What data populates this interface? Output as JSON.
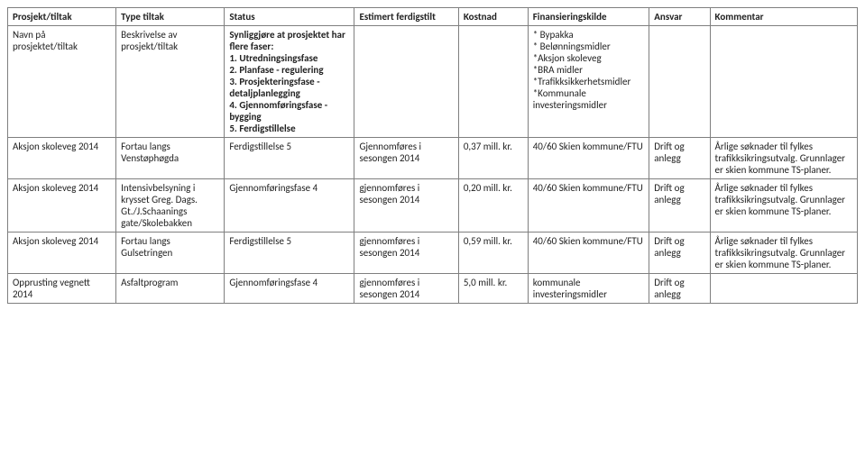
{
  "columns": [
    "Prosjekt/tiltak",
    "Type tiltak",
    "Status",
    "Estimert ferdigstilt",
    "Kostnad",
    "Finansieringskilde",
    "Ansvar",
    "Kommentar"
  ],
  "rows": [
    {
      "cells": [
        "Navn på prosjektet/tiltak",
        "Beskrivelse av prosjekt/tiltak",
        "Synliggjøre at prosjektet har flere faser:\n1. Utredningsingsfase\n2. Planfase - regulering\n3. Prosjekteringsfase - detaljplanlegging\n4. Gjennomføringsfase - bygging\n5. Ferdigstillelse",
        "",
        "",
        "* Bypakka\n* Belønningsmidler\n*Aksjon skoleveg\n*BRA midler\n*Trafikksikkerhetsmidler    *Kommunale investeringsmidler",
        "",
        ""
      ],
      "bold_cells": [
        2
      ]
    },
    {
      "cells": [
        "Aksjon skoleveg 2014",
        "Fortau langs Venstøphøgda",
        "Ferdigstillelse 5",
        "Gjennomføres i sesongen 2014",
        "0,37 mill. kr.",
        "40/60 Skien kommune/FTU",
        "Drift og anlegg",
        "Årlige søknader til fylkes trafikksikringsutvalg. Grunnlager er skien kommune TS-planer."
      ],
      "bold_cells": []
    },
    {
      "cells": [
        "Aksjon skoleveg 2014",
        "Intensivbelsyning i krysset Greg. Dags. Gt./J.Schaanings gate/Skolebakken",
        "Gjennomføringsfase 4",
        "gjennomføres i sesongen 2014",
        "0,20 mill. kr.",
        "40/60 Skien kommune/FTU",
        "Drift og anlegg",
        "Årlige søknader til fylkes trafikksikringsutvalg. Grunnlager er skien kommune TS-planer."
      ],
      "bold_cells": []
    },
    {
      "cells": [
        "Aksjon skoleveg 2014",
        "Fortau langs Gulsetringen",
        "Ferdigstillelse 5",
        "gjennomføres i sesongen 2014",
        "0,59 mill. kr.",
        "40/60 Skien kommune/FTU",
        "Drift og anlegg",
        "Årlige søknader til fylkes trafikksikringsutvalg. Grunnlager er skien kommune TS-planer."
      ],
      "bold_cells": []
    },
    {
      "cells": [
        "Opprusting vegnett 2014",
        "Asfaltprogram",
        "Gjennomføringsfase 4",
        "gjennomføres i sesongen 2014",
        "5,0 mill. kr.",
        "kommunale investeringsmidler",
        "Drift og anlegg",
        ""
      ],
      "bold_cells": []
    }
  ],
  "col_classes": [
    "c0",
    "c1",
    "c2",
    "c3",
    "c4",
    "c5",
    "c6",
    "c7"
  ]
}
